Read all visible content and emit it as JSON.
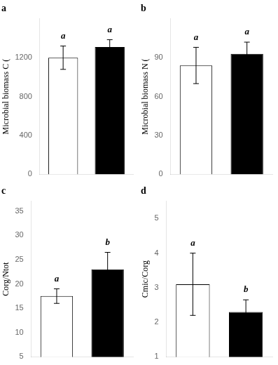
{
  "chart_data": [
    {
      "type": "bar",
      "title": "a",
      "y_label": "Microbial biomass C (",
      "categories": [
        null,
        null
      ],
      "values": [
        1200,
        1310
      ],
      "errors": [
        120,
        75
      ],
      "colors": [
        "#ffffff",
        "#000000"
      ],
      "annotations": [
        "a",
        "a"
      ],
      "ylim": [
        0,
        1600
      ],
      "yticks": [
        0,
        400,
        800,
        1200
      ],
      "grid": false,
      "tick_labels": "y"
    },
    {
      "type": "bar",
      "title": "b",
      "y_label": "Microbial biomass N (",
      "categories": [
        null,
        null
      ],
      "values": [
        84,
        93
      ],
      "errors": [
        14,
        9
      ],
      "colors": [
        "#ffffff",
        "#000000"
      ],
      "annotations": [
        "a",
        "a"
      ],
      "ylim": [
        0,
        120
      ],
      "yticks": [
        0,
        30,
        60,
        90
      ],
      "grid": false,
      "tick_labels": "y"
    },
    {
      "type": "bar",
      "title": "c",
      "y_label": "Corg/Ntot",
      "categories": [
        null,
        null
      ],
      "values": [
        17.5,
        23.0
      ],
      "errors": [
        1.5,
        3.5
      ],
      "colors": [
        "#ffffff",
        "#000000"
      ],
      "annotations": [
        "a",
        "b"
      ],
      "ylim": [
        5,
        37
      ],
      "yticks": [
        5,
        10,
        15,
        20,
        25,
        30,
        35
      ],
      "grid": false,
      "tick_labels": "y"
    },
    {
      "type": "bar",
      "title": "d",
      "y_label": "Cmic/Corg",
      "categories": [
        null,
        null
      ],
      "values": [
        3.1,
        2.3
      ],
      "errors": [
        0.9,
        0.35
      ],
      "colors": [
        "#ffffff",
        "#000000"
      ],
      "annotations": [
        "a",
        "b"
      ],
      "ylim": [
        1,
        5.5
      ],
      "yticks": [
        1,
        2,
        3,
        4,
        5
      ],
      "grid": false,
      "tick_labels": "y"
    }
  ]
}
